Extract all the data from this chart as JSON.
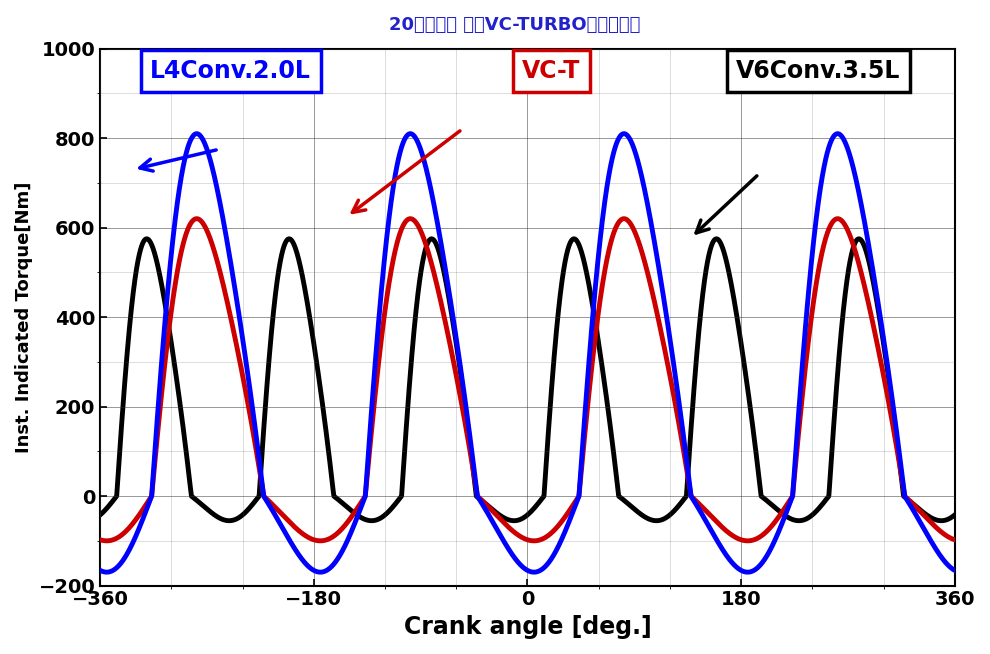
{
  "title": "20年磨一剑 日产VC-TURBO发动机解读",
  "xlabel": "Crank angle [deg.]",
  "ylabel": "Inst. Indicated Torque[Nm]",
  "xlim": [
    -360,
    360
  ],
  "ylim": [
    -200,
    1000
  ],
  "xticks": [
    -360,
    -180,
    0,
    180,
    360
  ],
  "yticks": [
    -200,
    0,
    200,
    400,
    600,
    800,
    1000
  ],
  "blue_label": "L4Conv.2.0L",
  "red_label": "VC-T",
  "black_label": "V6Conv.3.5L",
  "blue_color": "#0000FF",
  "red_color": "#CC0000",
  "black_color": "#000000",
  "blue_linewidth": 3.5,
  "red_linewidth": 3.5,
  "black_linewidth": 3.5,
  "background_color": "#FFFFFF",
  "title_color": "#2222CC",
  "blue_peak": 810,
  "blue_trough": -170,
  "red_peak": 620,
  "red_trough": -100,
  "black_peak": 575,
  "black_trough": -55,
  "blue_period": 180,
  "red_period": 180,
  "black_period": 120,
  "blue_phase": -315,
  "red_phase": -315,
  "black_phase": -345
}
